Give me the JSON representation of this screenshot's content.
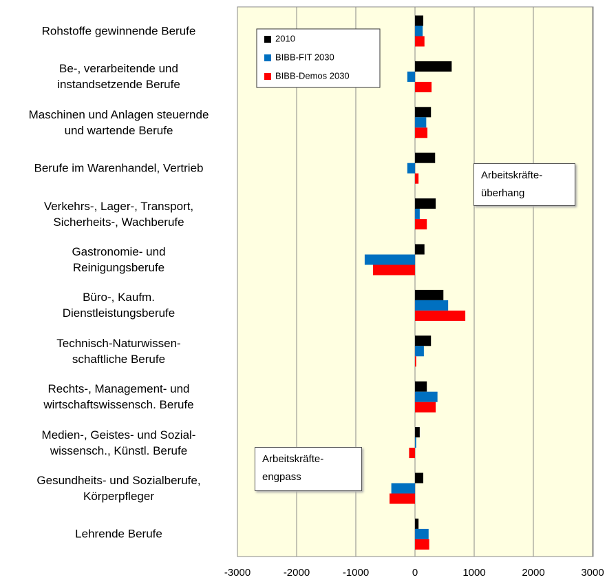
{
  "chart_data": {
    "type": "hbar",
    "categories": [
      "Rohstoffe gewinnende Berufe",
      "Be-, verarbeitende und\ninstandsetzende Berufe",
      "Maschinen und Anlagen steuernde\nund wartende Berufe",
      "Berufe im Warenhandel, Vertrieb",
      "Verkehrs-, Lager-, Transport,\nSicherheits-, Wachberufe",
      "Gastronomie- und\nReinigungsberufe",
      "Büro-, Kaufm.\nDienstleistungsberufe",
      "Technisch-Naturwissen-\nschaftliche Berufe",
      "Rechts-, Management- und\nwirtschaftswissensch. Berufe",
      "Medien-, Geistes- und Sozial-\nwissensch., Künstl. Berufe",
      "Gesundheits- und Sozialberufe,\nKörperpfleger",
      "Lehrende Berufe"
    ],
    "series": [
      {
        "name": "2010",
        "color": "#000000",
        "values": [
          140,
          620,
          270,
          340,
          350,
          160,
          480,
          270,
          200,
          80,
          140,
          60
        ]
      },
      {
        "name": "BIBB-FIT 2030",
        "color": "#0070c0",
        "values": [
          130,
          -130,
          190,
          -130,
          80,
          -850,
          560,
          150,
          380,
          20,
          -400,
          230
        ]
      },
      {
        "name": "BIBB-Demos 2030",
        "color": "#ff0000",
        "values": [
          160,
          280,
          210,
          60,
          200,
          -710,
          850,
          20,
          350,
          -100,
          -430,
          240
        ]
      }
    ],
    "xlim": [
      -3000,
      3000
    ],
    "xticks": [
      -3000,
      -2000,
      -1000,
      0,
      1000,
      2000,
      3000
    ],
    "grid": true,
    "annotations": [
      "Arbeitskräfte-\nüberhang",
      "Arbeitskräfte-\nengpass"
    ],
    "legend": "upper-left"
  }
}
